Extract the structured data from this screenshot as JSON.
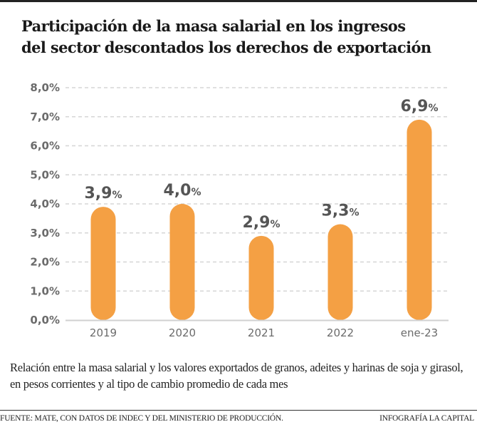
{
  "header": {
    "title_line1": "Participación de la masa salarial en los ingresos",
    "title_line2": "del sector descontados los derechos de exportación"
  },
  "chart_data": {
    "type": "bar",
    "title": "Participación de la masa salarial en los ingresos del sector descontados los derechos de exportación",
    "xlabel": "",
    "ylabel": "",
    "categories": [
      "2019",
      "2020",
      "2021",
      "2022",
      "ene-23"
    ],
    "values": [
      3.9,
      4.0,
      2.9,
      3.3,
      6.9
    ],
    "value_labels": [
      "3,9",
      "4,0",
      "2,9",
      "3,3",
      "6,9"
    ],
    "value_suffix": "%",
    "ylim": [
      0,
      8
    ],
    "yticks": [
      0,
      1,
      2,
      3,
      4,
      5,
      6,
      7,
      8
    ],
    "ytick_labels": [
      "0,0%",
      "1,0%",
      "2,0%",
      "3,0%",
      "4,0%",
      "5,0%",
      "6,0%",
      "7,0%",
      "8,0%"
    ],
    "grid": true,
    "legend": "none",
    "colors": {
      "bar": "#F4A044",
      "grid": "#d6d6d6",
      "axis": "#d0d0d0"
    }
  },
  "description": "Relación entre la masa salarial y los valores exportados de granos, adeites y harinas de soja y girasol, en pesos corrientes y al tipo de cambio promedio de cada mes",
  "footer": {
    "source": "FUENTE: MATE,  CON DATOS DE INDEC Y DEL MINISTERIO DE PRODUCCIÓN.",
    "credit": "INFOGRAFÍA LA CAPITAL"
  }
}
